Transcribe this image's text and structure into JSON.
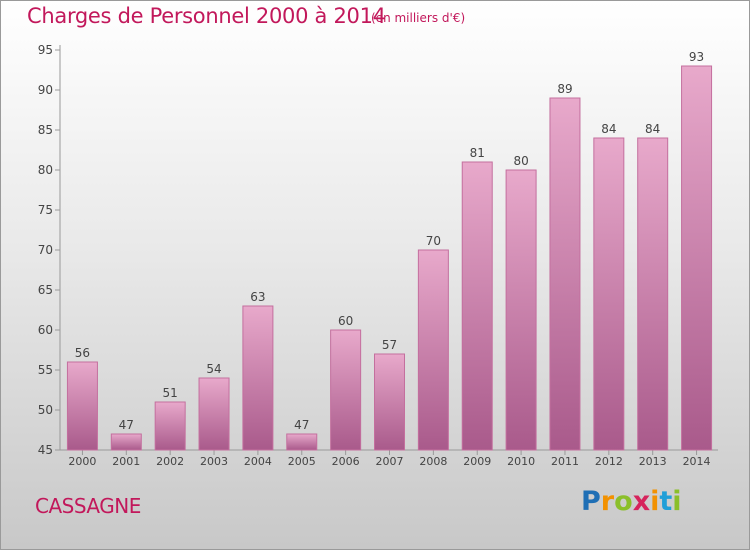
{
  "title": "Charges de Personnel 2000 à 2014",
  "subtitle": "(en milliers d'€)",
  "commune": "CASSAGNE",
  "logo": {
    "letters": [
      "P",
      "r",
      "o",
      "x",
      "i",
      "t",
      "i"
    ],
    "colors": [
      "#1f6fb5",
      "#f29100",
      "#8bbf2a",
      "#d6245c",
      "#f29100",
      "#1f9fd8",
      "#8bbf2a"
    ]
  },
  "chart_data": {
    "type": "bar",
    "categories": [
      "2000",
      "2001",
      "2002",
      "2003",
      "2004",
      "2005",
      "2006",
      "2007",
      "2008",
      "2009",
      "2010",
      "2011",
      "2012",
      "2013",
      "2014"
    ],
    "values": [
      56,
      47,
      51,
      54,
      63,
      47,
      60,
      57,
      70,
      81,
      80,
      89,
      84,
      84,
      93
    ],
    "ylim": [
      45,
      95
    ],
    "yticks": [
      45,
      50,
      55,
      60,
      65,
      70,
      75,
      80,
      85,
      90,
      95
    ],
    "grid": false,
    "bar_color": "#d27fac"
  }
}
